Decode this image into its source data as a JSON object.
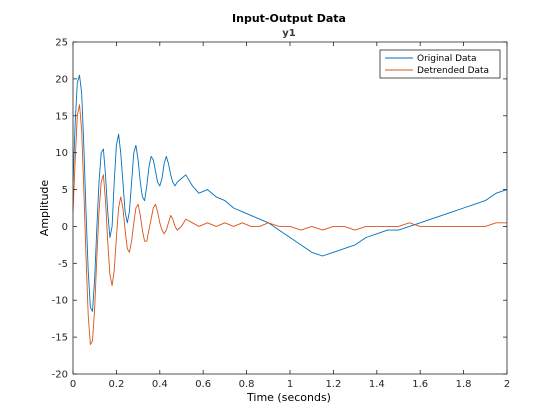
{
  "chart_data": {
    "type": "line",
    "title": "Input-Output Data",
    "subtitle": "y1",
    "xlabel": "Time (seconds)",
    "ylabel": "Amplitude",
    "xlim": [
      0,
      2
    ],
    "ylim": [
      -20,
      25
    ],
    "xticks": [
      0,
      0.2,
      0.4,
      0.6,
      0.8,
      1,
      1.2,
      1.4,
      1.6,
      1.8,
      2
    ],
    "xtick_labels": [
      "0",
      "0.2",
      "0.4",
      "0.6",
      "0.8",
      "1",
      "1.2",
      "1.4",
      "1.6",
      "1.8",
      "2"
    ],
    "yticks": [
      -20,
      -15,
      -10,
      -5,
      0,
      5,
      10,
      15,
      20,
      25
    ],
    "ytick_labels": [
      "-20",
      "-15",
      "-10",
      "-5",
      "0",
      "5",
      "10",
      "15",
      "20",
      "25"
    ],
    "grid": false,
    "legend_position": "top-right",
    "series": [
      {
        "name": "Original Data",
        "color": "#0072BD",
        "points": [
          [
            0,
            6
          ],
          [
            0.01,
            14
          ],
          [
            0.02,
            19.5
          ],
          [
            0.03,
            20.5
          ],
          [
            0.04,
            18
          ],
          [
            0.05,
            11
          ],
          [
            0.06,
            2
          ],
          [
            0.07,
            -6
          ],
          [
            0.08,
            -11
          ],
          [
            0.09,
            -11.5
          ],
          [
            0.1,
            -7
          ],
          [
            0.11,
            0
          ],
          [
            0.12,
            6
          ],
          [
            0.13,
            10
          ],
          [
            0.14,
            10.5
          ],
          [
            0.15,
            7
          ],
          [
            0.16,
            2
          ],
          [
            0.17,
            -1.5
          ],
          [
            0.18,
            0
          ],
          [
            0.19,
            6
          ],
          [
            0.2,
            11
          ],
          [
            0.21,
            12.5
          ],
          [
            0.22,
            10
          ],
          [
            0.23,
            6
          ],
          [
            0.24,
            2
          ],
          [
            0.25,
            0.5
          ],
          [
            0.26,
            2
          ],
          [
            0.27,
            6
          ],
          [
            0.28,
            10
          ],
          [
            0.29,
            11
          ],
          [
            0.3,
            9
          ],
          [
            0.31,
            6
          ],
          [
            0.32,
            4
          ],
          [
            0.33,
            3.5
          ],
          [
            0.34,
            5.5
          ],
          [
            0.35,
            8
          ],
          [
            0.36,
            9.5
          ],
          [
            0.37,
            9
          ],
          [
            0.38,
            7.5
          ],
          [
            0.39,
            6
          ],
          [
            0.4,
            5.5
          ],
          [
            0.41,
            6.5
          ],
          [
            0.42,
            8.5
          ],
          [
            0.43,
            9.5
          ],
          [
            0.44,
            8.5
          ],
          [
            0.45,
            7
          ],
          [
            0.46,
            6
          ],
          [
            0.47,
            5.5
          ],
          [
            0.48,
            6
          ],
          [
            0.5,
            6.5
          ],
          [
            0.52,
            7
          ],
          [
            0.55,
            5.5
          ],
          [
            0.58,
            4.5
          ],
          [
            0.62,
            5
          ],
          [
            0.66,
            4
          ],
          [
            0.7,
            3.5
          ],
          [
            0.74,
            2.5
          ],
          [
            0.78,
            2
          ],
          [
            0.82,
            1.5
          ],
          [
            0.86,
            1
          ],
          [
            0.9,
            0.5
          ],
          [
            0.95,
            -0.5
          ],
          [
            1.0,
            -1.5
          ],
          [
            1.05,
            -2.5
          ],
          [
            1.1,
            -3.5
          ],
          [
            1.15,
            -4
          ],
          [
            1.2,
            -3.5
          ],
          [
            1.25,
            -3
          ],
          [
            1.3,
            -2.5
          ],
          [
            1.35,
            -1.5
          ],
          [
            1.4,
            -1
          ],
          [
            1.45,
            -0.5
          ],
          [
            1.5,
            -0.5
          ],
          [
            1.55,
            0
          ],
          [
            1.6,
            0.5
          ],
          [
            1.65,
            1
          ],
          [
            1.7,
            1.5
          ],
          [
            1.75,
            2
          ],
          [
            1.8,
            2.5
          ],
          [
            1.85,
            3
          ],
          [
            1.9,
            3.5
          ],
          [
            1.95,
            4.5
          ],
          [
            2.0,
            5
          ]
        ]
      },
      {
        "name": "Detrended Data",
        "color": "#D95319",
        "points": [
          [
            0,
            2
          ],
          [
            0.01,
            9
          ],
          [
            0.02,
            15
          ],
          [
            0.03,
            16.5
          ],
          [
            0.04,
            13
          ],
          [
            0.05,
            5
          ],
          [
            0.06,
            -4
          ],
          [
            0.07,
            -12
          ],
          [
            0.08,
            -16
          ],
          [
            0.09,
            -15.5
          ],
          [
            0.1,
            -11
          ],
          [
            0.11,
            -4
          ],
          [
            0.12,
            2
          ],
          [
            0.13,
            6
          ],
          [
            0.14,
            7
          ],
          [
            0.15,
            3.5
          ],
          [
            0.16,
            -2
          ],
          [
            0.17,
            -6.5
          ],
          [
            0.18,
            -8
          ],
          [
            0.19,
            -6
          ],
          [
            0.2,
            -1.5
          ],
          [
            0.21,
            2.5
          ],
          [
            0.22,
            4
          ],
          [
            0.23,
            2.5
          ],
          [
            0.24,
            -0.5
          ],
          [
            0.25,
            -3
          ],
          [
            0.26,
            -3.5
          ],
          [
            0.27,
            -2
          ],
          [
            0.28,
            0.5
          ],
          [
            0.29,
            2.5
          ],
          [
            0.3,
            3
          ],
          [
            0.31,
            1.5
          ],
          [
            0.32,
            -0.5
          ],
          [
            0.33,
            -2
          ],
          [
            0.34,
            -2
          ],
          [
            0.35,
            -0.5
          ],
          [
            0.36,
            1
          ],
          [
            0.37,
            2.5
          ],
          [
            0.38,
            3
          ],
          [
            0.39,
            2
          ],
          [
            0.4,
            0.5
          ],
          [
            0.41,
            -0.5
          ],
          [
            0.42,
            -1
          ],
          [
            0.43,
            -0.5
          ],
          [
            0.44,
            0.5
          ],
          [
            0.45,
            1.5
          ],
          [
            0.46,
            1
          ],
          [
            0.47,
            0
          ],
          [
            0.48,
            -0.5
          ],
          [
            0.5,
            0
          ],
          [
            0.52,
            1
          ],
          [
            0.55,
            0.5
          ],
          [
            0.58,
            0
          ],
          [
            0.62,
            0.5
          ],
          [
            0.66,
            0
          ],
          [
            0.7,
            0.5
          ],
          [
            0.74,
            0
          ],
          [
            0.78,
            0.5
          ],
          [
            0.82,
            0
          ],
          [
            0.86,
            0
          ],
          [
            0.9,
            0.5
          ],
          [
            0.95,
            0
          ],
          [
            1.0,
            0
          ],
          [
            1.05,
            -0.5
          ],
          [
            1.1,
            0
          ],
          [
            1.15,
            -0.5
          ],
          [
            1.2,
            0
          ],
          [
            1.25,
            0
          ],
          [
            1.3,
            -0.5
          ],
          [
            1.35,
            0
          ],
          [
            1.4,
            0
          ],
          [
            1.45,
            0
          ],
          [
            1.5,
            0
          ],
          [
            1.55,
            0.5
          ],
          [
            1.6,
            0
          ],
          [
            1.65,
            0
          ],
          [
            1.7,
            0
          ],
          [
            1.75,
            0
          ],
          [
            1.8,
            0
          ],
          [
            1.85,
            0
          ],
          [
            1.9,
            0
          ],
          [
            1.95,
            0.5
          ],
          [
            2.0,
            0.5
          ]
        ]
      }
    ]
  }
}
